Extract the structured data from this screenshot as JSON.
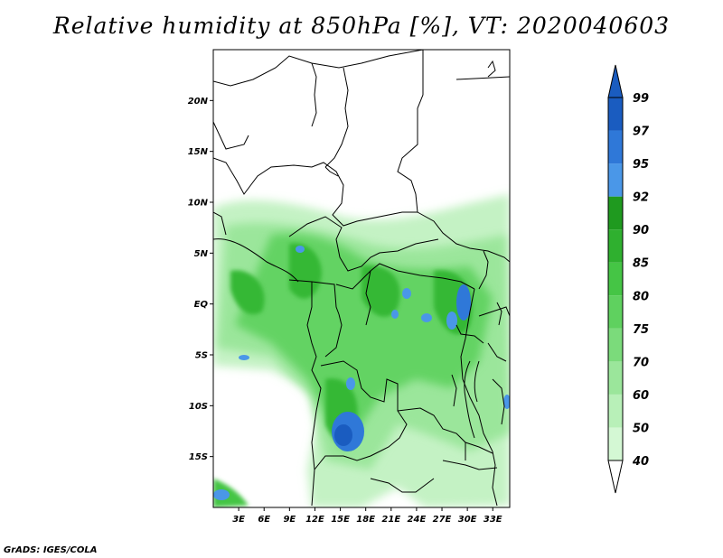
{
  "title": "Relative humidity at 850hPa [%], VT: 2020040603",
  "credit": "GrADS: IGES/COLA",
  "map": {
    "variable": "Relative humidity",
    "level": "850hPa",
    "units": "%",
    "valid_time": "2020040603",
    "lat_ticks": [
      {
        "lat": 20,
        "label": "20N"
      },
      {
        "lat": 15,
        "label": "15N"
      },
      {
        "lat": 10,
        "label": "10N"
      },
      {
        "lat": 5,
        "label": "5N"
      },
      {
        "lat": 0,
        "label": "EQ"
      },
      {
        "lat": -5,
        "label": "5S"
      },
      {
        "lat": -10,
        "label": "10S"
      },
      {
        "lat": -15,
        "label": "15S"
      }
    ],
    "lon_ticks": [
      {
        "lon": 3,
        "label": "3E"
      },
      {
        "lon": 6,
        "label": "6E"
      },
      {
        "lon": 9,
        "label": "9E"
      },
      {
        "lon": 12,
        "label": "12E"
      },
      {
        "lon": 15,
        "label": "15E"
      },
      {
        "lon": 18,
        "label": "18E"
      },
      {
        "lon": 21,
        "label": "21E"
      },
      {
        "lon": 24,
        "label": "24E"
      },
      {
        "lon": 27,
        "label": "27E"
      },
      {
        "lon": 30,
        "label": "30E"
      },
      {
        "lon": 33,
        "label": "33E"
      }
    ],
    "lon_range": [
      0,
      35
    ],
    "lat_range": [
      -20,
      25
    ]
  },
  "colorbar": {
    "levels": [
      "40",
      "50",
      "60",
      "70",
      "75",
      "80",
      "85",
      "90",
      "92",
      "95",
      "97",
      "99"
    ],
    "colors": [
      "#f0fff0",
      "#d4f8d4",
      "#b8f0b8",
      "#9be69b",
      "#7bdb7b",
      "#5fd15f",
      "#45c545",
      "#2fb02f",
      "#1f9a1f",
      "#4a97e8",
      "#2f78d8",
      "#1a5cc0"
    ],
    "below_color": "#ffffff",
    "above_color": "#1a5cc0"
  }
}
